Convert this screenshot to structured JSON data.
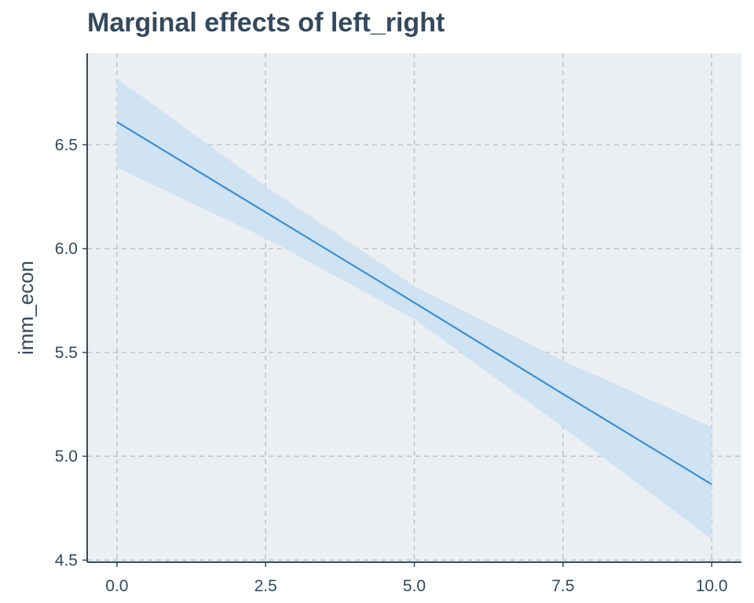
{
  "chart_data": {
    "type": "line",
    "title": "Marginal effects of left_right",
    "xlabel": "",
    "ylabel": "imm_econ",
    "xlim": [
      -0.5,
      10.5
    ],
    "ylim": [
      4.49,
      6.94
    ],
    "x_ticks": [
      "0.0",
      "2.5",
      "5.0",
      "7.5",
      "10.0"
    ],
    "y_ticks": [
      "4.5",
      "5.0",
      "5.5",
      "6.0",
      "6.5"
    ],
    "grid": true,
    "series": [
      {
        "x": [
          0,
          2.5,
          5,
          7.5,
          10
        ],
        "values": [
          6.61,
          6.175,
          5.74,
          5.3,
          4.865
        ],
        "ci_lower": [
          6.39,
          6.05,
          5.66,
          5.14,
          4.6
        ],
        "ci_upper": [
          6.82,
          6.3,
          5.82,
          5.46,
          5.14
        ]
      }
    ],
    "colors": {
      "line": "#3a8fd4",
      "band": "#cfe2f1",
      "panel": "#ebeff1",
      "grid": "#bfc4c7",
      "axis": "#34495e"
    }
  }
}
